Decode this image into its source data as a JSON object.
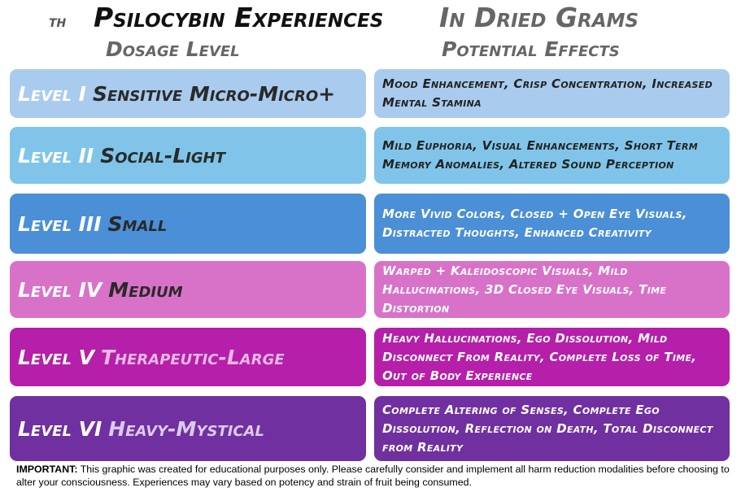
{
  "header": {
    "prefix": "th",
    "title": "Psilocybin Experiences",
    "subtitle": "In Dried Grams"
  },
  "columns": [
    "Dosage Level",
    "Potential Effects"
  ],
  "rows": [
    {
      "level": "Level I",
      "name": "Sensitive Micro-Micro+",
      "effects": "Mood Enhancement, Crisp Concentration, Increased Mental Stamina"
    },
    {
      "level": "Level II",
      "name": "Social-Light",
      "effects": "Mild Euphoria, Visual Enhancements, Short Term Memory Anomalies, Altered Sound Perception"
    },
    {
      "level": "Level III",
      "name": "Small",
      "effects": "More Vivid Colors, Closed + Open Eye Visuals, Distracted Thoughts, Enhanced Creativity"
    },
    {
      "level": "Level IV",
      "name": "Medium",
      "effects": "Warped + Kaleidoscopic Visuals, Mild Hallucinations, 3D Closed Eye Visuals, Time Distortion"
    },
    {
      "level": "Level V",
      "name": "Therapeutic-Large",
      "effects": "Heavy Hallucinations, Ego Dissolution, Mild Disconnect From Reality, Complete Loss of Time, Out of Body Experience"
    },
    {
      "level": "Level VI",
      "name": "Heavy-Mystical",
      "effects": "Complete Altering of Senses, Complete Ego Dissolution, Reflection on Death, Total Disconnect from Reality"
    }
  ],
  "footer": {
    "label": "IMPORTANT:",
    "text": "This graphic was created for educational purposes only.  Please carefully consider and implement all harm reduction modalities before choosing to alter your consciousness.  Experiences may vary based on potency and strain of fruit being consumed."
  }
}
